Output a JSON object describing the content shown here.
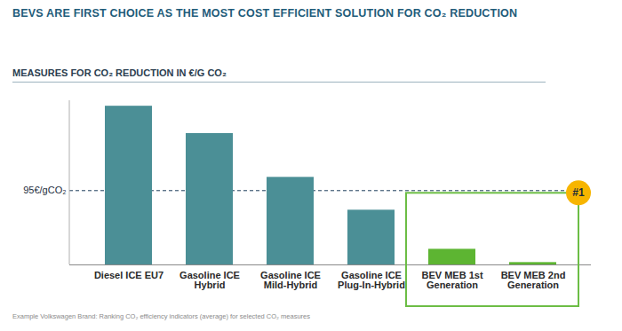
{
  "chart_data": {
    "type": "bar",
    "title": "BEVS ARE FIRST CHOICE AS THE MOST COST EFFICIENT SOLUTION FOR CO₂ REDUCTION",
    "subtitle": "MEASURES FOR CO₂ REDUCTION IN €/G CO₂",
    "categories": [
      "Diesel ICE EU7",
      "Gasoline ICE Hybrid",
      "Gasoline ICE Mild-Hybrid",
      "Gasoline ICE Plug-In-Hybrid",
      "BEV MEB 1st Generation",
      "BEV MEB 2nd Generation"
    ],
    "values": [
      203,
      168,
      112,
      70,
      20,
      3
    ],
    "colors": [
      "#4b8f96",
      "#4b8f96",
      "#4b8f96",
      "#4b8f96",
      "#5db532",
      "#5db532"
    ],
    "ylim": [
      0,
      210
    ],
    "yticks": [
      {
        "value": 95,
        "label": "95€/gCO₂"
      }
    ],
    "grid": true,
    "annotation": "#1",
    "caption": "Example Volkswagen Brand: Ranking CO₂ efficiency indicators (average) for selected CO₂ measures"
  }
}
